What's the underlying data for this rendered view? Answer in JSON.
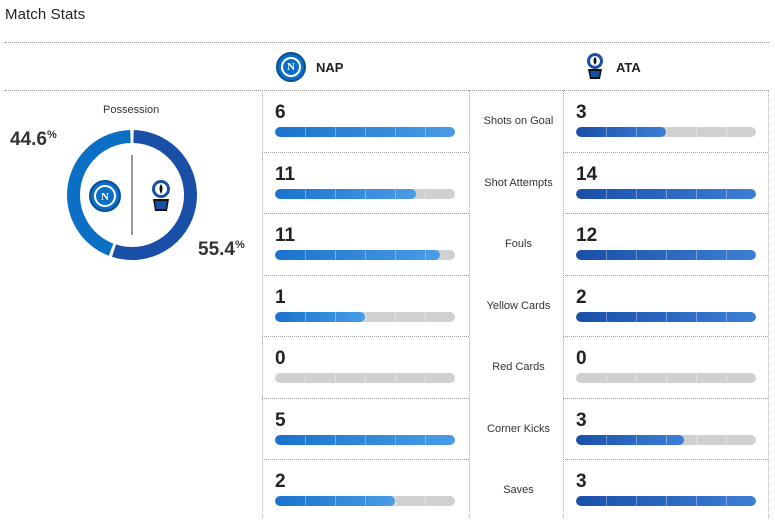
{
  "header": {
    "title": "Match Stats"
  },
  "teams": {
    "home": {
      "abbr": "NAP",
      "logo_letter": "N",
      "color": "#0b6fc6"
    },
    "away": {
      "abbr": "ATA",
      "color": "#1a4fa8"
    }
  },
  "possession": {
    "label": "Possession",
    "home_value": "44.6",
    "away_value": "55.4",
    "unit": "%",
    "home_fraction": 0.446,
    "away_fraction": 0.554
  },
  "stats": [
    {
      "label": "Shots on Goal",
      "home": "6",
      "away": "3",
      "home_fill": 1.0,
      "away_fill": 0.5
    },
    {
      "label": "Shot Attempts",
      "home": "11",
      "away": "14",
      "home_fill": 0.786,
      "away_fill": 1.0
    },
    {
      "label": "Fouls",
      "home": "11",
      "away": "12",
      "home_fill": 0.917,
      "away_fill": 1.0
    },
    {
      "label": "Yellow Cards",
      "home": "1",
      "away": "2",
      "home_fill": 0.5,
      "away_fill": 1.0
    },
    {
      "label": "Red Cards",
      "home": "0",
      "away": "0",
      "home_fill": 0,
      "away_fill": 0
    },
    {
      "label": "Corner Kicks",
      "home": "5",
      "away": "3",
      "home_fill": 1.0,
      "away_fill": 0.6
    },
    {
      "label": "Saves",
      "home": "2",
      "away": "3",
      "home_fill": 0.667,
      "away_fill": 1.0
    }
  ]
}
